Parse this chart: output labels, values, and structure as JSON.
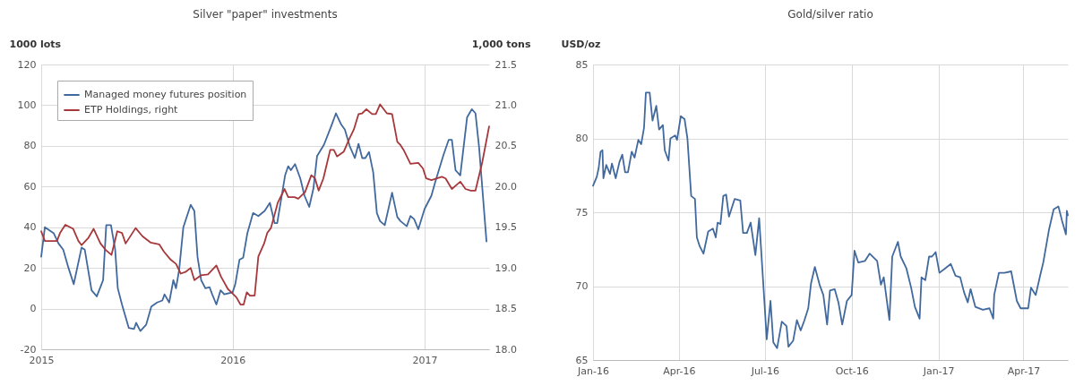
{
  "chart_data": [
    {
      "type": "line",
      "title": "Silver \"paper\" investments",
      "ylabel": "1000 lots",
      "y2label": "1,000 tons",
      "legend": "top left",
      "grid": true,
      "xlim": [
        "2015-01-01",
        "2017-05-04"
      ],
      "xticks": [
        {
          "value": "2015-01-01",
          "label": "2015"
        },
        {
          "value": "2016-01-01",
          "label": "2016"
        },
        {
          "value": "2017-01-01",
          "label": "2017"
        }
      ],
      "ylim": [
        -20,
        120
      ],
      "yticks": [
        -20,
        0,
        20,
        40,
        60,
        80,
        100,
        120
      ],
      "y2lim": [
        18,
        21.5
      ],
      "y2ticks": [
        {
          "value": 18,
          "label": "18.0"
        },
        {
          "value": 18.5,
          "label": "18.5"
        },
        {
          "value": 19,
          "label": "19.0"
        },
        {
          "value": 19.5,
          "label": "19.5"
        },
        {
          "value": 20,
          "label": "20.0"
        },
        {
          "value": 20.5,
          "label": "20.5"
        },
        {
          "value": 21,
          "label": "21.0"
        },
        {
          "value": 21.5,
          "label": "21.5"
        }
      ],
      "series": [
        {
          "name": "Managed money futures position",
          "color": "#41699e",
          "x": [
            "2015-01-01",
            "2015-01-08",
            "2015-01-25",
            "2015-02-03",
            "2015-02-12",
            "2015-02-22",
            "2015-03-04",
            "2015-03-19",
            "2015-03-25",
            "2015-04-07",
            "2015-04-17",
            "2015-04-26",
            "2015-04-29",
            "2015-05-05",
            "2015-05-14",
            "2015-05-22",
            "2015-05-27",
            "2015-06-04",
            "2015-06-17",
            "2015-06-27",
            "2015-07-01",
            "2015-07-09",
            "2015-07-20",
            "2015-07-30",
            "2015-08-10",
            "2015-08-20",
            "2015-08-24",
            "2015-09-02",
            "2015-09-10",
            "2015-09-15",
            "2015-09-21",
            "2015-09-29",
            "2015-10-13",
            "2015-10-20",
            "2015-10-26",
            "2015-11-02",
            "2015-11-10",
            "2015-11-18",
            "2015-11-23",
            "2015-12-01",
            "2015-12-09",
            "2015-12-16",
            "2016-01-01",
            "2016-01-06",
            "2016-01-14",
            "2016-01-21",
            "2016-01-29",
            "2016-02-09",
            "2016-02-19",
            "2016-03-02",
            "2016-03-12",
            "2016-03-21",
            "2016-03-26",
            "2016-04-02",
            "2016-04-10",
            "2016-04-16",
            "2016-04-21",
            "2016-04-29",
            "2016-05-09",
            "2016-05-17",
            "2016-05-26",
            "2016-06-03",
            "2016-06-10",
            "2016-06-23",
            "2016-07-06",
            "2016-07-16",
            "2016-07-26",
            "2016-08-02",
            "2016-08-11",
            "2016-08-21",
            "2016-08-28",
            "2016-09-04",
            "2016-09-10",
            "2016-09-17",
            "2016-09-25",
            "2016-10-02",
            "2016-10-08",
            "2016-10-17",
            "2016-10-31",
            "2016-11-10",
            "2016-11-16",
            "2016-11-28",
            "2016-12-05",
            "2016-12-12",
            "2016-12-20",
            "2017-01-01",
            "2017-01-14",
            "2017-01-21",
            "2017-02-06",
            "2017-02-16",
            "2017-02-22",
            "2017-03-01",
            "2017-03-10",
            "2017-03-23",
            "2017-04-01",
            "2017-04-08",
            "2017-04-15",
            "2017-04-29"
          ],
          "values": [
            25.5,
            40,
            37,
            32,
            29,
            20,
            12,
            30,
            29,
            9,
            6,
            12,
            14,
            41,
            41,
            29,
            10,
            2,
            -9.5,
            -10,
            -7,
            -11,
            -8,
            1,
            3,
            4,
            7,
            3,
            14,
            10,
            19,
            40,
            51,
            48,
            25.5,
            14,
            10,
            10.5,
            7,
            2,
            9,
            7,
            8,
            12,
            24,
            25,
            37,
            47,
            45.5,
            48,
            52,
            42,
            42,
            53,
            65.5,
            70,
            68,
            71,
            64,
            55.5,
            50,
            59,
            75,
            80.5,
            89,
            96,
            90.5,
            88,
            80,
            74,
            81,
            74,
            74,
            77,
            67,
            47,
            43,
            41,
            57,
            45,
            43,
            40.5,
            45.5,
            44,
            39,
            49,
            55.5,
            62,
            75.5,
            83,
            83,
            68,
            65.5,
            94,
            98,
            96,
            79,
            33
          ]
        },
        {
          "name": "ETP Holdings, right",
          "color": "#a6373a",
          "axis": "y2",
          "x": [
            "2015-01-01",
            "2015-01-08",
            "2015-01-31",
            "2015-02-06",
            "2015-02-16",
            "2015-03-03",
            "2015-03-13",
            "2015-03-19",
            "2015-04-01",
            "2015-04-11",
            "2015-04-24",
            "2015-05-04",
            "2015-05-15",
            "2015-05-26",
            "2015-06-04",
            "2015-06-11",
            "2015-06-30",
            "2015-07-13",
            "2015-07-29",
            "2015-08-14",
            "2015-08-23",
            "2015-09-05",
            "2015-09-15",
            "2015-09-24",
            "2015-10-03",
            "2015-10-13",
            "2015-10-20",
            "2015-11-02",
            "2015-11-15",
            "2015-12-01",
            "2015-12-10",
            "2015-12-23",
            "2016-01-08",
            "2016-01-16",
            "2016-01-22",
            "2016-01-28",
            "2016-02-03",
            "2016-02-12",
            "2016-02-19",
            "2016-03-01",
            "2016-03-07",
            "2016-03-14",
            "2016-03-27",
            "2016-04-09",
            "2016-04-16",
            "2016-04-28",
            "2016-05-05",
            "2016-05-18",
            "2016-05-30",
            "2016-06-06",
            "2016-06-13",
            "2016-06-22",
            "2016-07-05",
            "2016-07-12",
            "2016-07-18",
            "2016-07-31",
            "2016-08-10",
            "2016-08-19",
            "2016-08-28",
            "2016-09-04",
            "2016-09-12",
            "2016-09-23",
            "2016-09-30",
            "2016-10-08",
            "2016-10-21",
            "2016-10-31",
            "2016-11-10",
            "2016-11-16",
            "2016-11-22",
            "2016-12-05",
            "2016-12-20",
            "2016-12-29",
            "2017-01-04",
            "2017-01-14",
            "2017-02-03",
            "2017-02-10",
            "2017-02-22",
            "2017-03-10",
            "2017-03-20",
            "2017-03-30",
            "2017-04-08",
            "2017-04-21",
            "2017-05-04"
          ],
          "values": [
            19.45,
            19.33,
            19.33,
            19.43,
            19.53,
            19.48,
            19.33,
            19.28,
            19.37,
            19.48,
            19.3,
            19.22,
            19.16,
            19.45,
            19.43,
            19.3,
            19.49,
            19.39,
            19.31,
            19.29,
            19.2,
            19.1,
            19.05,
            18.93,
            18.95,
            19.0,
            18.85,
            18.91,
            18.92,
            19.03,
            18.89,
            18.74,
            18.64,
            18.55,
            18.55,
            18.7,
            18.66,
            18.66,
            19.14,
            19.3,
            19.43,
            19.49,
            19.8,
            19.97,
            19.87,
            19.87,
            19.85,
            19.93,
            20.14,
            20.1,
            19.95,
            20.1,
            20.45,
            20.45,
            20.37,
            20.43,
            20.58,
            20.7,
            20.89,
            20.9,
            20.95,
            20.89,
            20.89,
            21.01,
            20.9,
            20.89,
            20.55,
            20.51,
            20.45,
            20.28,
            20.29,
            20.22,
            20.1,
            20.08,
            20.12,
            20.1,
            19.97,
            20.06,
            19.97,
            19.95,
            19.95,
            20.3,
            20.74
          ]
        }
      ]
    },
    {
      "type": "line",
      "title": "Gold/silver ratio",
      "ylabel": "USD/oz",
      "grid": true,
      "xlim": [
        "2016-01-01",
        "2017-05-18"
      ],
      "xticks": [
        {
          "value": "2016-01-01",
          "label": "Jan-16"
        },
        {
          "value": "2016-04-01",
          "label": "Apr-16"
        },
        {
          "value": "2016-07-01",
          "label": "Jul-16"
        },
        {
          "value": "2016-10-01",
          "label": "Oct-16"
        },
        {
          "value": "2017-01-01",
          "label": "Jan-17"
        },
        {
          "value": "2017-04-01",
          "label": "Apr-17"
        }
      ],
      "ylim": [
        65,
        85
      ],
      "yticks": [
        65,
        70,
        75,
        80,
        85
      ],
      "series": [
        {
          "color": "#41699e",
          "x": [
            "2016-01-01",
            "2016-01-05",
            "2016-01-07",
            "2016-01-09",
            "2016-01-11",
            "2016-01-12",
            "2016-01-15",
            "2016-01-19",
            "2016-01-21",
            "2016-01-25",
            "2016-01-29",
            "2016-02-01",
            "2016-02-04",
            "2016-02-07",
            "2016-02-11",
            "2016-02-14",
            "2016-02-18",
            "2016-02-21",
            "2016-02-24",
            "2016-02-26",
            "2016-03-01",
            "2016-03-04",
            "2016-03-08",
            "2016-03-11",
            "2016-03-15",
            "2016-03-17",
            "2016-03-21",
            "2016-03-23",
            "2016-03-28",
            "2016-03-30",
            "2016-04-03",
            "2016-04-07",
            "2016-04-10",
            "2016-04-14",
            "2016-04-18",
            "2016-04-20",
            "2016-04-23",
            "2016-04-27",
            "2016-05-02",
            "2016-05-07",
            "2016-05-10",
            "2016-05-12",
            "2016-05-15",
            "2016-05-18",
            "2016-05-21",
            "2016-05-24",
            "2016-05-30",
            "2016-06-05",
            "2016-06-08",
            "2016-06-12",
            "2016-06-16",
            "2016-06-21",
            "2016-06-25",
            "2016-07-01",
            "2016-07-03",
            "2016-07-07",
            "2016-07-10",
            "2016-07-14",
            "2016-07-19",
            "2016-07-24",
            "2016-07-26",
            "2016-07-31",
            "2016-08-04",
            "2016-08-08",
            "2016-08-12",
            "2016-08-16",
            "2016-08-19",
            "2016-08-23",
            "2016-08-28",
            "2016-09-01",
            "2016-09-05",
            "2016-09-08",
            "2016-09-13",
            "2016-09-17",
            "2016-09-21",
            "2016-09-26",
            "2016-10-01",
            "2016-10-04",
            "2016-10-08",
            "2016-10-15",
            "2016-10-20",
            "2016-10-28",
            "2016-11-01",
            "2016-11-04",
            "2016-11-10",
            "2016-11-13",
            "2016-11-19",
            "2016-11-22",
            "2016-11-28",
            "2016-12-03",
            "2016-12-07",
            "2016-12-12",
            "2016-12-14",
            "2016-12-18",
            "2016-12-22",
            "2016-12-25",
            "2016-12-29",
            "2017-01-02",
            "2017-01-08",
            "2017-01-14",
            "2017-01-19",
            "2017-01-24",
            "2017-01-28",
            "2017-02-01",
            "2017-02-04",
            "2017-02-09",
            "2017-02-17",
            "2017-02-24",
            "2017-02-28",
            "2017-03-01",
            "2017-03-06",
            "2017-03-12",
            "2017-03-19",
            "2017-03-25",
            "2017-03-29",
            "2017-04-06",
            "2017-04-09",
            "2017-04-14",
            "2017-04-19",
            "2017-04-22",
            "2017-04-28",
            "2017-05-03",
            "2017-05-08",
            "2017-05-12",
            "2017-05-16",
            "2017-05-17",
            "2017-05-18"
          ],
          "values": [
            76.8,
            77.4,
            78.0,
            79.1,
            79.2,
            77.3,
            78.2,
            77.6,
            78.3,
            77.3,
            78.4,
            78.9,
            77.7,
            77.7,
            79.1,
            78.7,
            79.9,
            79.6,
            80.7,
            83.1,
            83.1,
            81.2,
            82.2,
            80.6,
            80.9,
            79.2,
            78.5,
            80.0,
            80.2,
            79.9,
            81.5,
            81.3,
            80.0,
            76.1,
            75.9,
            73.3,
            72.7,
            72.2,
            73.7,
            73.9,
            73.3,
            74.3,
            74.2,
            76.1,
            76.2,
            74.7,
            75.9,
            75.8,
            73.6,
            73.6,
            74.3,
            72.1,
            74.6,
            68.5,
            66.4,
            69.0,
            66.2,
            65.8,
            67.6,
            67.3,
            65.9,
            66.3,
            67.7,
            67.0,
            67.7,
            68.5,
            70.2,
            71.3,
            70.1,
            69.4,
            67.4,
            69.7,
            69.8,
            68.9,
            67.4,
            69.0,
            69.4,
            72.4,
            71.6,
            71.7,
            72.2,
            71.7,
            70.1,
            70.6,
            67.7,
            72.0,
            73.0,
            72.0,
            71.2,
            69.9,
            68.6,
            67.8,
            70.6,
            70.4,
            72.0,
            72.0,
            72.3,
            70.9,
            71.2,
            71.5,
            70.7,
            70.6,
            69.6,
            68.9,
            69.8,
            68.6,
            68.4,
            68.5,
            67.8,
            69.4,
            70.9,
            70.9,
            71.0,
            69.0,
            68.5,
            68.5,
            69.9,
            69.4,
            70.8,
            71.6,
            73.8,
            75.2,
            75.4,
            74.4,
            73.5,
            75.1,
            74.8
          ]
        }
      ]
    }
  ]
}
